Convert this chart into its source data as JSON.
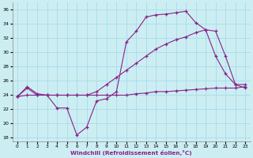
{
  "title": "",
  "xlabel": "Windchill (Refroidissement éolien,°C)",
  "background_color": "#cceef2",
  "grid_color": "#aaddee",
  "line_color": "#882288",
  "xlim": [
    -0.5,
    23.5
  ],
  "ylim": [
    17.5,
    37.0
  ],
  "yticks": [
    18,
    20,
    22,
    24,
    26,
    28,
    30,
    32,
    34,
    36
  ],
  "xticks": [
    0,
    1,
    2,
    3,
    4,
    5,
    6,
    7,
    8,
    9,
    10,
    11,
    12,
    13,
    14,
    15,
    16,
    17,
    18,
    19,
    20,
    21,
    22,
    23
  ],
  "line1_x": [
    0,
    1,
    2,
    3,
    4,
    5,
    6,
    7,
    8,
    9,
    10,
    11,
    12,
    13,
    14,
    15,
    16,
    17,
    18,
    19,
    20,
    21,
    22,
    23
  ],
  "line1_y": [
    23.8,
    25.0,
    24.0,
    24.0,
    22.2,
    22.2,
    18.4,
    19.5,
    23.2,
    23.5,
    24.5,
    31.5,
    33.0,
    35.0,
    35.3,
    35.4,
    35.6,
    35.8,
    34.2,
    33.2,
    29.5,
    27.0,
    25.5,
    25.5
  ],
  "line2_x": [
    0,
    1,
    2,
    3,
    4,
    5,
    6,
    7,
    8,
    9,
    10,
    11,
    12,
    13,
    14,
    15,
    16,
    17,
    18,
    19,
    20,
    21,
    22,
    23
  ],
  "line2_y": [
    23.8,
    25.2,
    24.2,
    24.0,
    24.0,
    24.0,
    24.0,
    24.0,
    24.5,
    25.5,
    26.5,
    27.5,
    28.5,
    29.5,
    30.5,
    31.2,
    31.8,
    32.2,
    32.8,
    33.2,
    33.0,
    29.5,
    25.5,
    25.0
  ],
  "line3_x": [
    0,
    1,
    2,
    3,
    4,
    5,
    6,
    7,
    8,
    9,
    10,
    11,
    12,
    13,
    14,
    15,
    16,
    17,
    18,
    19,
    20,
    21,
    22,
    23
  ],
  "line3_y": [
    23.8,
    24.0,
    24.0,
    24.0,
    24.0,
    24.0,
    24.0,
    24.0,
    24.0,
    24.0,
    24.0,
    24.0,
    24.2,
    24.3,
    24.5,
    24.5,
    24.6,
    24.7,
    24.8,
    24.9,
    25.0,
    25.0,
    25.0,
    25.2
  ]
}
